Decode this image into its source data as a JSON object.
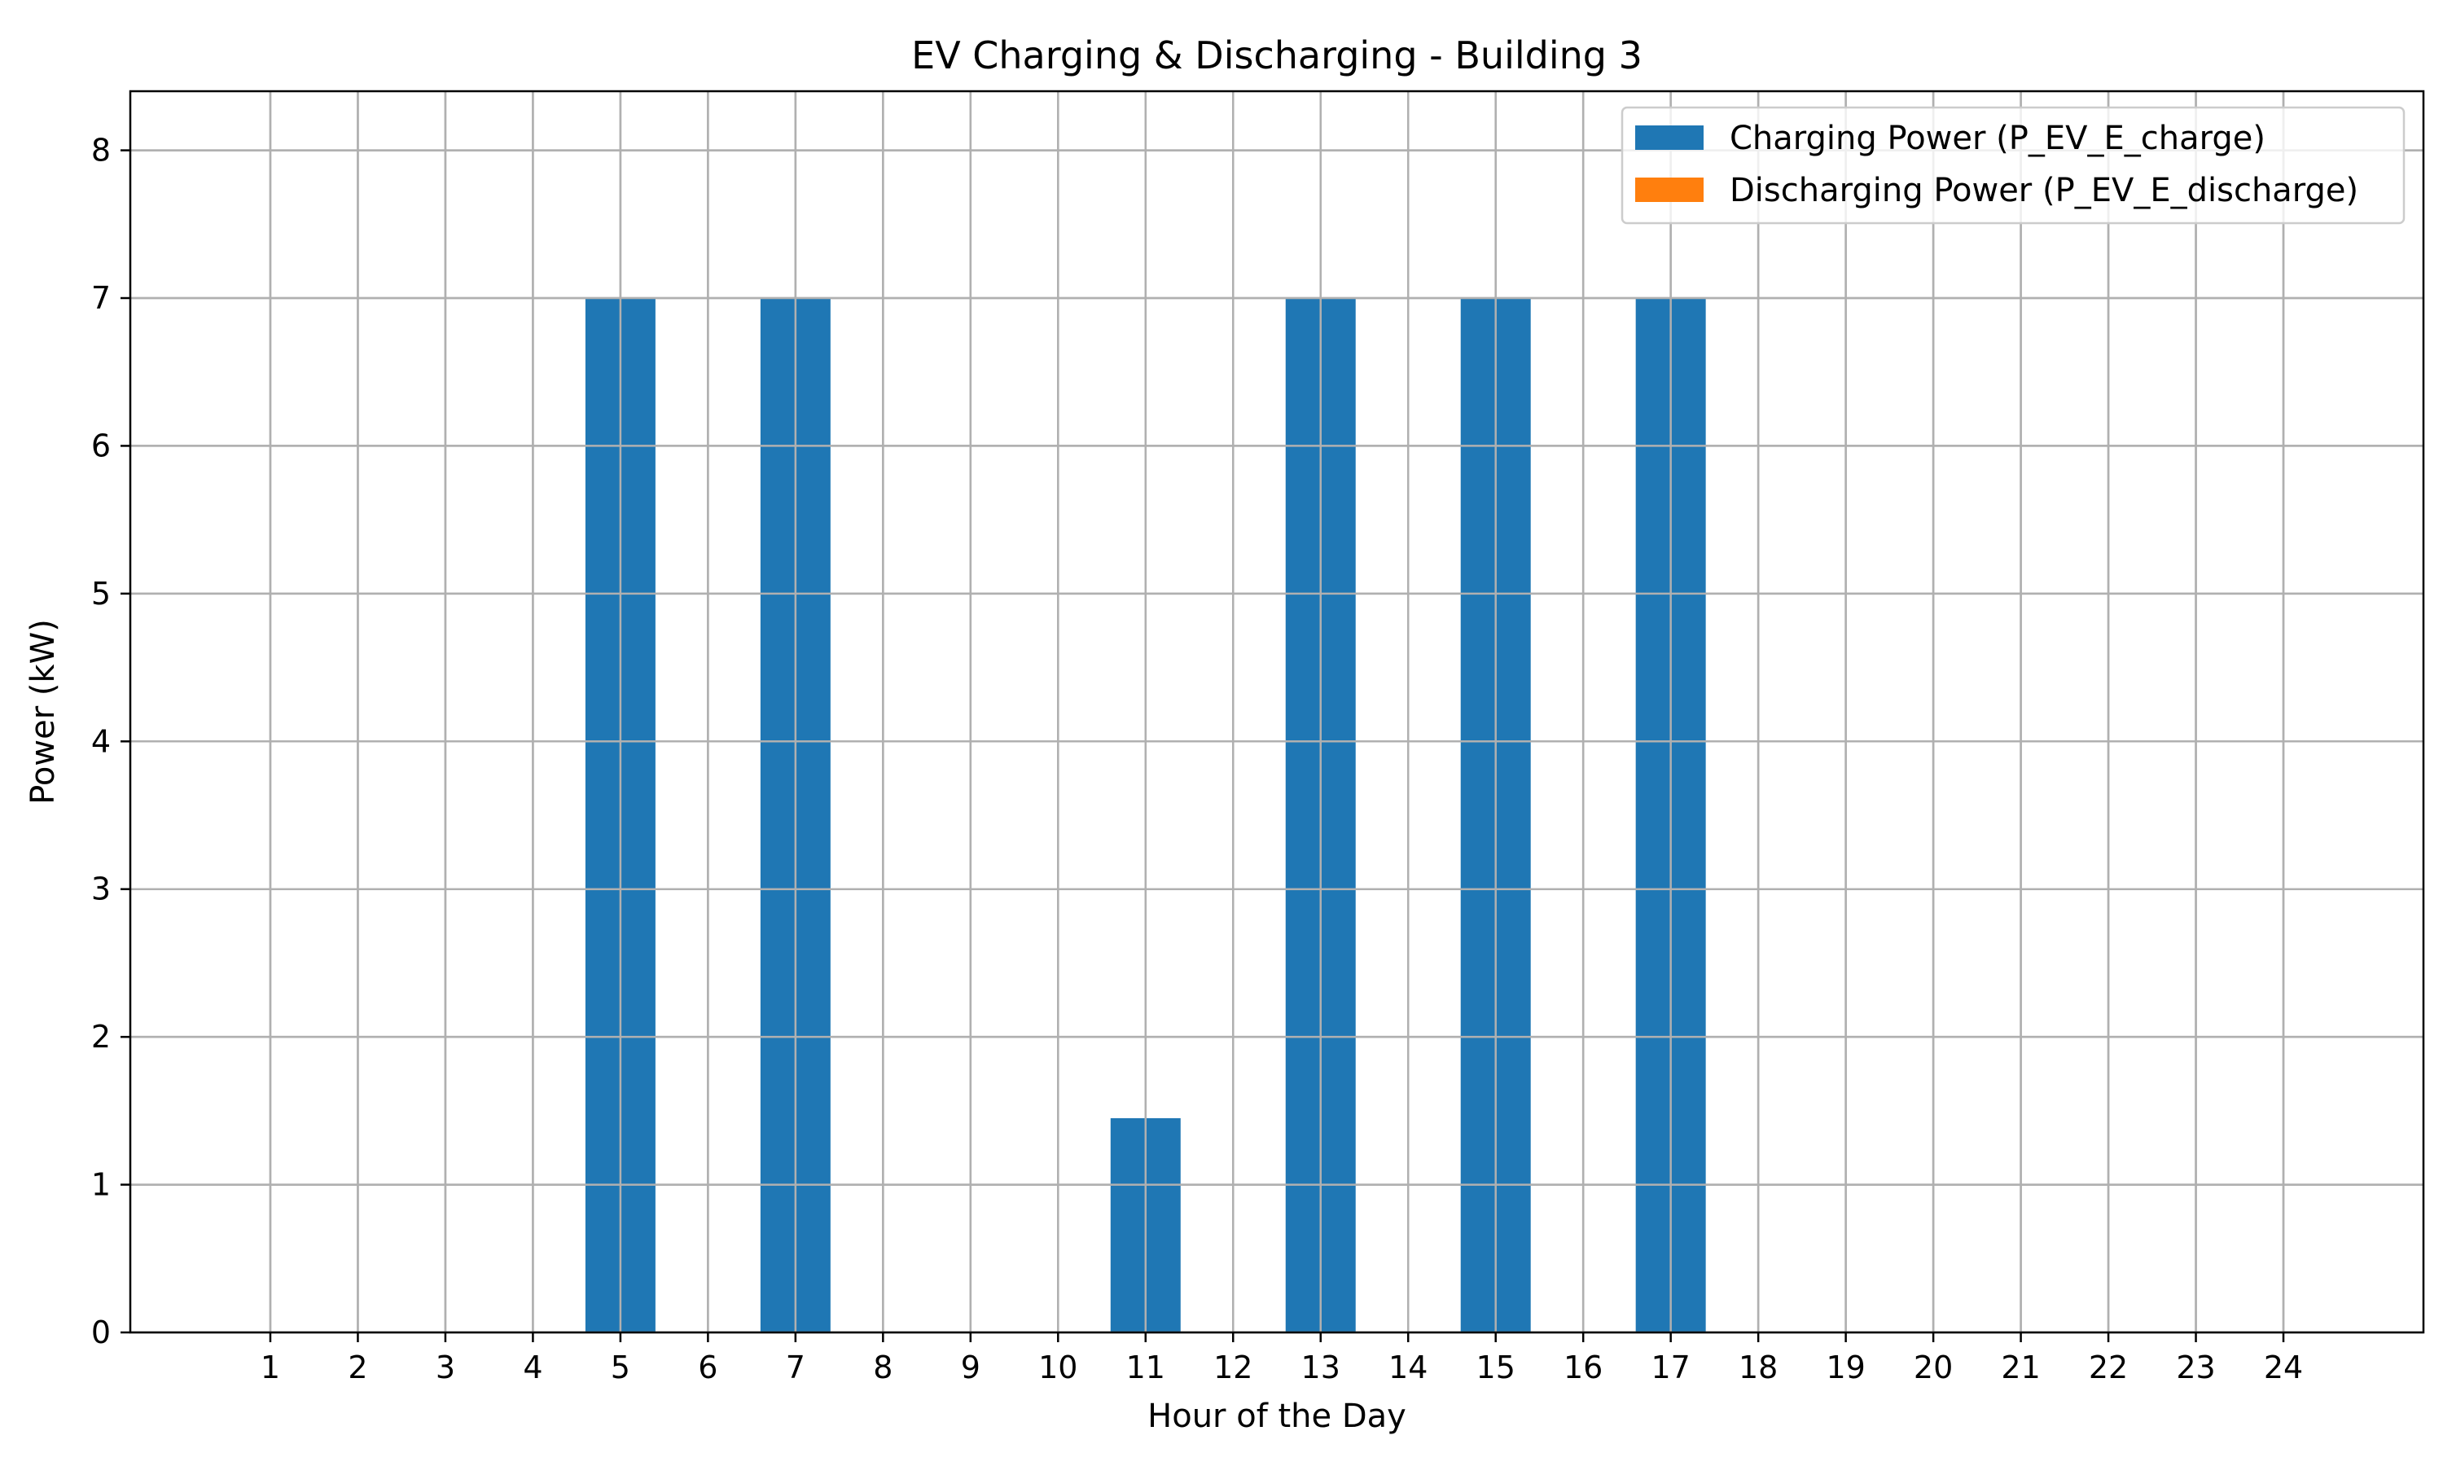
{
  "chart_data": {
    "type": "bar",
    "title": "EV Charging & Discharging - Building 3",
    "xlabel": "Hour of the Day",
    "ylabel": "Power (kW)",
    "categories": [
      "1",
      "2",
      "3",
      "4",
      "5",
      "6",
      "7",
      "8",
      "9",
      "10",
      "11",
      "12",
      "13",
      "14",
      "15",
      "16",
      "17",
      "18",
      "19",
      "20",
      "21",
      "22",
      "23",
      "24"
    ],
    "xlim": [
      -0.6,
      25.6
    ],
    "ylim": [
      0,
      8.4
    ],
    "yticks": [
      0,
      1,
      2,
      3,
      4,
      5,
      6,
      7,
      8
    ],
    "grid": true,
    "legend_position": "top-right",
    "series": [
      {
        "name": "Charging Power (P_EV_E_charge)",
        "color": "#1f77b4",
        "values": [
          0,
          0,
          0,
          0,
          7,
          0,
          7,
          0,
          0,
          0,
          1.45,
          0,
          7,
          0,
          7,
          0,
          7,
          0,
          0,
          0,
          0,
          0,
          0,
          0
        ]
      },
      {
        "name": "Discharging Power (P_EV_E_discharge)",
        "color": "#ff7f0e",
        "values": [
          0,
          0,
          0,
          0,
          0,
          0,
          0,
          0,
          0,
          0,
          0,
          0,
          0,
          0,
          0,
          0,
          0,
          0,
          0,
          0,
          0,
          0,
          0,
          0
        ]
      }
    ]
  }
}
